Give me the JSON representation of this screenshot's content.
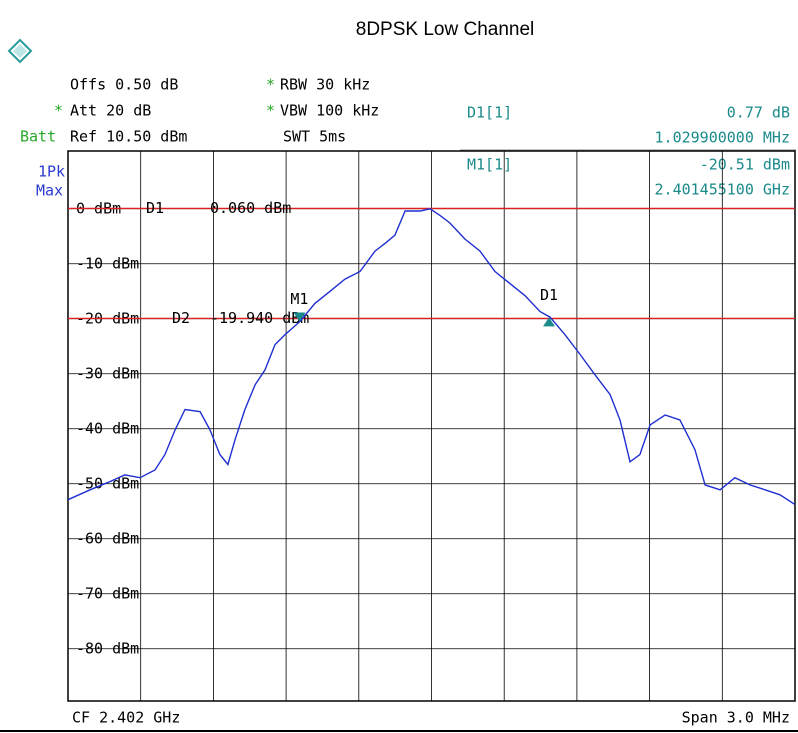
{
  "title": "8DPSK Low Channel",
  "settings": {
    "offs": "Offs 0.50 dB",
    "rbw_star": "*",
    "rbw": "RBW 30 kHz",
    "att_star": "*",
    "att": "Att 20 dB",
    "vbw_star": "*",
    "vbw": "VBW 100 kHz",
    "batt": "Batt",
    "ref": "Ref 10.50 dBm",
    "swt": "SWT 5ms",
    "detector": "1Pk",
    "mode": "Max"
  },
  "marker_info": {
    "d1_name": "D1[1]",
    "d1_level": "0.77 dB",
    "d1_freq": "1.029900000 MHz",
    "m1_name": "M1[1]",
    "m1_level": "-20.51 dBm",
    "m1_freq": "2.401455100 GHz"
  },
  "footer": {
    "center": "CF 2.402 GHz",
    "span": "Span 3.0 MHz"
  },
  "chart_data": {
    "type": "line",
    "color": "#1f2fd0",
    "x": [
      2.4005,
      2.400591,
      2.400673,
      2.400735,
      2.400797,
      2.400859,
      2.4009,
      2.400942,
      2.400983,
      2.401045,
      2.401086,
      2.401127,
      2.40116,
      2.401189,
      2.40123,
      2.401272,
      2.401313,
      2.401354,
      2.401395,
      2.401457,
      2.401519,
      2.401581,
      2.401643,
      2.401705,
      2.401767,
      2.401808,
      2.401849,
      2.401891,
      2.401953,
      2.401994,
      2.402035,
      2.402076,
      2.402138,
      2.4022,
      2.402262,
      2.402324,
      2.402386,
      2.402448,
      2.402489,
      2.402551,
      2.402613,
      2.402675,
      2.402737,
      2.402778,
      2.402819,
      2.40286,
      2.402902,
      2.402964,
      2.403025,
      2.403087,
      2.403129,
      2.403191,
      2.403252,
      2.403314,
      2.403376,
      2.403438,
      2.4035
    ],
    "values": [
      -52.9,
      -51.1,
      -49.6,
      -48.4,
      -48.9,
      -47.5,
      -44.7,
      -40.2,
      -36.5,
      -36.9,
      -40.2,
      -44.7,
      -46.5,
      -42.0,
      -36.5,
      -32.0,
      -29.3,
      -24.7,
      -22.9,
      -20.5,
      -17.2,
      -15.0,
      -12.8,
      -11.4,
      -7.7,
      -6.3,
      -4.8,
      -0.4,
      -0.4,
      0.0,
      -1.2,
      -2.6,
      -5.5,
      -7.7,
      -11.4,
      -13.6,
      -15.8,
      -18.7,
      -19.7,
      -22.9,
      -26.5,
      -30.2,
      -33.8,
      -38.4,
      -46.0,
      -44.7,
      -39.3,
      -37.5,
      -38.4,
      -43.8,
      -50.2,
      -51.1,
      -48.9,
      -50.2,
      -51.1,
      -52.0,
      -53.8
    ],
    "xlim": [
      2.4005,
      2.4035
    ],
    "ylim": [
      -89.5,
      10.5
    ],
    "yticks": [
      {
        "value": 0,
        "label": "0 dBm"
      },
      {
        "value": -10,
        "label": "-10 dBm"
      },
      {
        "value": -20,
        "label": "-20 dBm"
      },
      {
        "value": -30,
        "label": "-30 dBm"
      },
      {
        "value": -40,
        "label": "-40 dBm"
      },
      {
        "value": -50,
        "label": "-50 dBm"
      },
      {
        "value": -60,
        "label": "-60 dBm"
      },
      {
        "value": -70,
        "label": "-70 dBm"
      },
      {
        "value": -80,
        "label": "-80 dBm"
      }
    ],
    "grid": true,
    "lines": [
      {
        "name": "D1",
        "value": 0.06,
        "value_label": "0.060 dBm",
        "color": "#e02020"
      },
      {
        "name": "D2",
        "value": -19.94,
        "value_label": "-19.940 dBm",
        "color": "#e02020"
      }
    ],
    "markers": [
      {
        "label": "M1",
        "x": 2.4014551,
        "value": -20.51,
        "direction": "down",
        "color": "#1a8a8a"
      },
      {
        "label": "D1",
        "x": 2.402485,
        "value": -19.74,
        "direction": "up",
        "color": "#1a8a8a"
      }
    ]
  }
}
